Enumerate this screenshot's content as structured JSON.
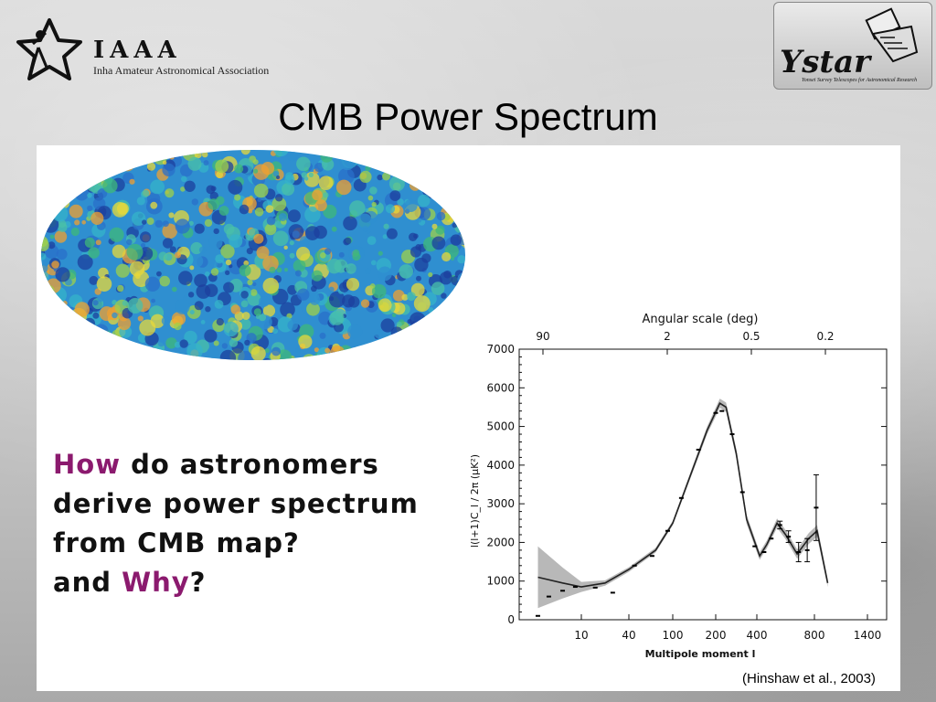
{
  "header": {
    "logo_title": "IAAA",
    "logo_subtitle": "Inha Amateur Astronomical Association",
    "ystar_name": "Ystar",
    "ystar_tagline": "Yonsei Survey Telescopes for Astronomical Research"
  },
  "slide": {
    "title": "CMB Power Spectrum",
    "question": {
      "l1_hl": "How",
      "l1_rest": " do astronomers",
      "l2": "derive power spectrum",
      "l3": "from CMB map?",
      "l4_pre": "and ",
      "l4_hl": "Why",
      "l4_post": "?"
    },
    "citation": "(Hinshaw et al., 2003)"
  },
  "colors": {
    "highlight": "#8b1a6e",
    "band": "#b8b8b8",
    "curve": "#222222",
    "panel": "#ffffff"
  },
  "chart_data": {
    "type": "line",
    "xlabel": "Multipole moment l",
    "ylabel": "l(l+1)C_l / 2π (μK²)",
    "top_axis_label": "Angular scale (deg)",
    "top_ticks": [
      "90",
      "2",
      "0.5",
      "0.2"
    ],
    "x_ticks": [
      "10",
      "40",
      "100",
      "200",
      "400",
      "800",
      "1400"
    ],
    "y_ticks": [
      "0",
      "1000",
      "2000",
      "3000",
      "4000",
      "5000",
      "6000",
      "7000"
    ],
    "ylim": [
      0,
      7000
    ],
    "x_scale": "custom (log-like at low l, linear at high l)",
    "series": [
      {
        "points": [
          {
            "x": 2,
            "y": 1100
          },
          {
            "x": 5,
            "y": 950
          },
          {
            "x": 10,
            "y": 850
          },
          {
            "x": 20,
            "y": 950
          },
          {
            "x": 40,
            "y": 1300
          },
          {
            "x": 70,
            "y": 1800
          },
          {
            "x": 100,
            "y": 2500
          },
          {
            "x": 140,
            "y": 3700
          },
          {
            "x": 180,
            "y": 4900
          },
          {
            "x": 220,
            "y": 5600
          },
          {
            "x": 250,
            "y": 5500
          },
          {
            "x": 300,
            "y": 4300
          },
          {
            "x": 350,
            "y": 2600
          },
          {
            "x": 420,
            "y": 1650
          },
          {
            "x": 470,
            "y": 1950
          },
          {
            "x": 540,
            "y": 2500
          },
          {
            "x": 600,
            "y": 2200
          },
          {
            "x": 680,
            "y": 1700
          },
          {
            "x": 760,
            "y": 2100
          },
          {
            "x": 830,
            "y": 2300
          },
          {
            "x": 950,
            "y": 950
          }
        ]
      }
    ],
    "cosmic_variance_band": [
      {
        "x": 2,
        "lo": 300,
        "hi": 1900
      },
      {
        "x": 5,
        "lo": 550,
        "hi": 1350
      },
      {
        "x": 10,
        "lo": 720,
        "hi": 980
      },
      {
        "x": 20,
        "lo": 880,
        "hi": 1020
      },
      {
        "x": 40,
        "lo": 1240,
        "hi": 1360
      },
      {
        "x": 70,
        "lo": 1740,
        "hi": 1860
      },
      {
        "x": 100,
        "lo": 2440,
        "hi": 2560
      },
      {
        "x": 140,
        "lo": 3620,
        "hi": 3780
      },
      {
        "x": 180,
        "lo": 4800,
        "hi": 5000
      },
      {
        "x": 220,
        "lo": 5480,
        "hi": 5720
      },
      {
        "x": 250,
        "lo": 5380,
        "hi": 5620
      },
      {
        "x": 300,
        "lo": 4180,
        "hi": 4420
      },
      {
        "x": 350,
        "lo": 2480,
        "hi": 2720
      },
      {
        "x": 420,
        "lo": 1550,
        "hi": 1750
      },
      {
        "x": 470,
        "lo": 1850,
        "hi": 2050
      },
      {
        "x": 540,
        "lo": 2380,
        "hi": 2620
      },
      {
        "x": 600,
        "lo": 2080,
        "hi": 2320
      },
      {
        "x": 680,
        "lo": 1580,
        "hi": 1820
      },
      {
        "x": 760,
        "lo": 1960,
        "hi": 2240
      },
      {
        "x": 830,
        "lo": 2150,
        "hi": 2450
      },
      {
        "x": 950,
        "lo": 850,
        "hi": 1050
      }
    ],
    "measurements": [
      {
        "x": 2,
        "y": 100,
        "err": 0
      },
      {
        "x": 3,
        "y": 600,
        "err": 0
      },
      {
        "x": 5,
        "y": 750,
        "err": 0
      },
      {
        "x": 8,
        "y": 850,
        "err": 0
      },
      {
        "x": 15,
        "y": 830,
        "err": 0
      },
      {
        "x": 25,
        "y": 700,
        "err": 0
      },
      {
        "x": 45,
        "y": 1400,
        "err": 0
      },
      {
        "x": 65,
        "y": 1650,
        "err": 0
      },
      {
        "x": 90,
        "y": 2300,
        "err": 0
      },
      {
        "x": 120,
        "y": 3150,
        "err": 0
      },
      {
        "x": 160,
        "y": 4400,
        "err": 0
      },
      {
        "x": 200,
        "y": 5350,
        "err": 0
      },
      {
        "x": 230,
        "y": 5400,
        "err": 0
      },
      {
        "x": 280,
        "y": 4800,
        "err": 0
      },
      {
        "x": 330,
        "y": 3300,
        "err": 0
      },
      {
        "x": 390,
        "y": 1900,
        "err": 0
      },
      {
        "x": 450,
        "y": 1750,
        "err": 0
      },
      {
        "x": 500,
        "y": 2100,
        "err": 0
      },
      {
        "x": 560,
        "y": 2450,
        "err": 100
      },
      {
        "x": 620,
        "y": 2150,
        "err": 150
      },
      {
        "x": 690,
        "y": 1750,
        "err": 250
      },
      {
        "x": 750,
        "y": 1800,
        "err": 300
      },
      {
        "x": 820,
        "y": 2900,
        "err": 850
      }
    ]
  }
}
